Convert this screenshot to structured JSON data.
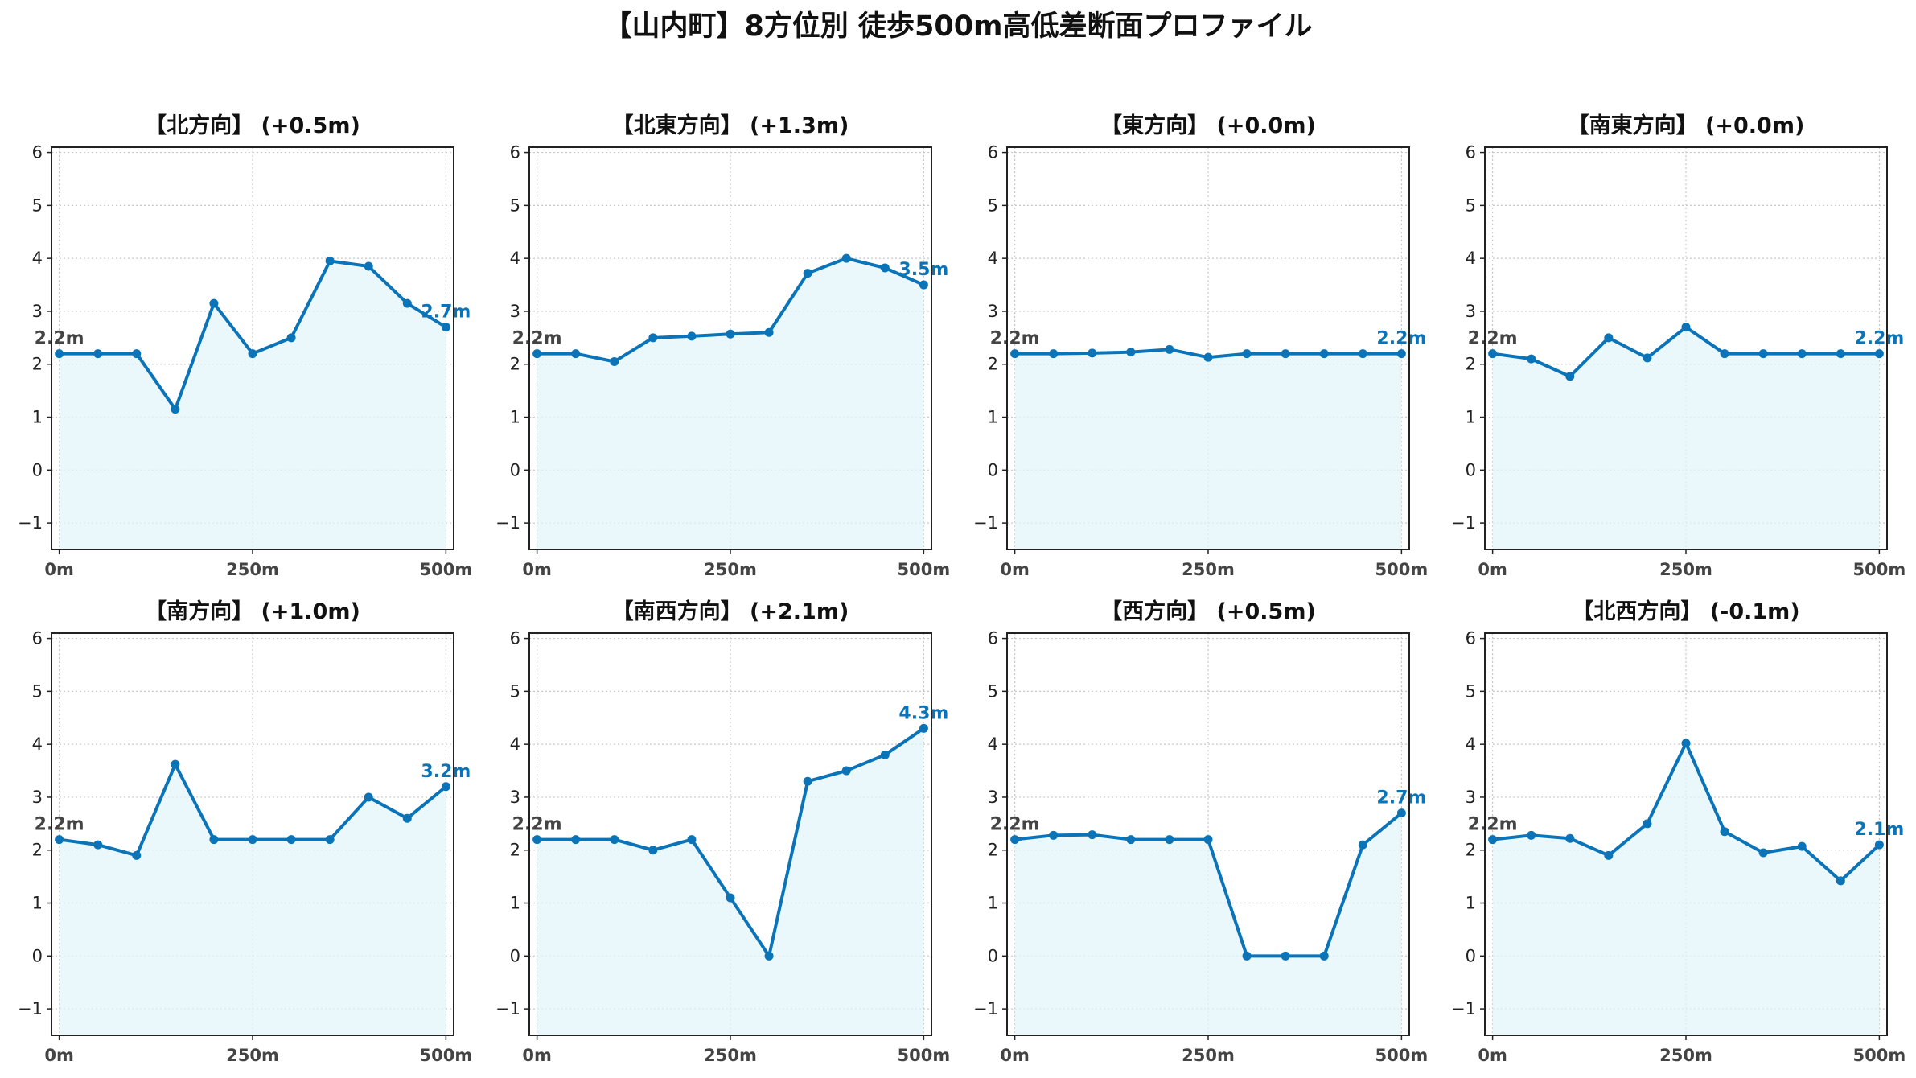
{
  "title": "【山内町】8方位別 徒歩500m高低差断面プロファイル",
  "colors": {
    "line": "#0b74b8",
    "fill": "#e3f4fa",
    "grid": "#c8c8c8",
    "start_label": "#444444",
    "end_label": "#0b74b8"
  },
  "chart_data": [
    {
      "type": "line",
      "title": "【北方向】 (+0.5m)",
      "x": [
        0,
        50,
        100,
        150,
        200,
        250,
        300,
        350,
        400,
        450,
        500
      ],
      "values": [
        2.2,
        2.2,
        2.2,
        1.15,
        3.15,
        2.2,
        2.5,
        3.95,
        3.85,
        3.15,
        2.7
      ],
      "start_label": "2.2m",
      "end_label": "2.7m",
      "xticks": [
        "0m",
        "250m",
        "500m"
      ],
      "yticks": [
        "−1",
        "0",
        "1",
        "2",
        "3",
        "4",
        "5",
        "6"
      ],
      "ylim": [
        -1.5,
        6.1
      ],
      "xlim": [
        -10,
        510
      ],
      "grid": true
    },
    {
      "type": "line",
      "title": "【北東方向】 (+1.3m)",
      "x": [
        0,
        50,
        100,
        150,
        200,
        250,
        300,
        350,
        400,
        450,
        500
      ],
      "values": [
        2.2,
        2.2,
        2.05,
        2.5,
        2.53,
        2.57,
        2.6,
        3.72,
        4.0,
        3.82,
        3.5
      ],
      "start_label": "2.2m",
      "end_label": "3.5m",
      "xticks": [
        "0m",
        "250m",
        "500m"
      ],
      "yticks": [
        "−1",
        "0",
        "1",
        "2",
        "3",
        "4",
        "5",
        "6"
      ],
      "ylim": [
        -1.5,
        6.1
      ],
      "xlim": [
        -10,
        510
      ],
      "grid": true
    },
    {
      "type": "line",
      "title": "【東方向】 (+0.0m)",
      "x": [
        0,
        50,
        100,
        150,
        200,
        250,
        300,
        350,
        400,
        450,
        500
      ],
      "values": [
        2.2,
        2.2,
        2.21,
        2.23,
        2.28,
        2.13,
        2.2,
        2.2,
        2.2,
        2.2,
        2.2
      ],
      "start_label": "2.2m",
      "end_label": "2.2m",
      "xticks": [
        "0m",
        "250m",
        "500m"
      ],
      "yticks": [
        "−1",
        "0",
        "1",
        "2",
        "3",
        "4",
        "5",
        "6"
      ],
      "ylim": [
        -1.5,
        6.1
      ],
      "xlim": [
        -10,
        510
      ],
      "grid": true
    },
    {
      "type": "line",
      "title": "【南東方向】 (+0.0m)",
      "x": [
        0,
        50,
        100,
        150,
        200,
        250,
        300,
        350,
        400,
        450,
        500
      ],
      "values": [
        2.2,
        2.1,
        1.77,
        2.5,
        2.12,
        2.7,
        2.2,
        2.2,
        2.2,
        2.2,
        2.2
      ],
      "start_label": "2.2m",
      "end_label": "2.2m",
      "xticks": [
        "0m",
        "250m",
        "500m"
      ],
      "yticks": [
        "−1",
        "0",
        "1",
        "2",
        "3",
        "4",
        "5",
        "6"
      ],
      "ylim": [
        -1.5,
        6.1
      ],
      "xlim": [
        -10,
        510
      ],
      "grid": true
    },
    {
      "type": "line",
      "title": "【南方向】 (+1.0m)",
      "x": [
        0,
        50,
        100,
        150,
        200,
        250,
        300,
        350,
        400,
        450,
        500
      ],
      "values": [
        2.2,
        2.1,
        1.9,
        3.62,
        2.2,
        2.2,
        2.2,
        2.2,
        3.0,
        2.6,
        3.2
      ],
      "start_label": "2.2m",
      "end_label": "3.2m",
      "xticks": [
        "0m",
        "250m",
        "500m"
      ],
      "yticks": [
        "−1",
        "0",
        "1",
        "2",
        "3",
        "4",
        "5",
        "6"
      ],
      "ylim": [
        -1.5,
        6.1
      ],
      "xlim": [
        -10,
        510
      ],
      "grid": true
    },
    {
      "type": "line",
      "title": "【南西方向】 (+2.1m)",
      "x": [
        0,
        50,
        100,
        150,
        200,
        250,
        300,
        350,
        400,
        450,
        500
      ],
      "values": [
        2.2,
        2.2,
        2.2,
        2.0,
        2.2,
        1.1,
        0.0,
        3.3,
        3.5,
        3.8,
        4.3
      ],
      "start_label": "2.2m",
      "end_label": "4.3m",
      "xticks": [
        "0m",
        "250m",
        "500m"
      ],
      "yticks": [
        "−1",
        "0",
        "1",
        "2",
        "3",
        "4",
        "5",
        "6"
      ],
      "ylim": [
        -1.5,
        6.1
      ],
      "xlim": [
        -10,
        510
      ],
      "grid": true
    },
    {
      "type": "line",
      "title": "【西方向】 (+0.5m)",
      "x": [
        0,
        50,
        100,
        150,
        200,
        250,
        300,
        350,
        400,
        450,
        500
      ],
      "values": [
        2.2,
        2.28,
        2.29,
        2.2,
        2.2,
        2.2,
        0.0,
        0.0,
        0.0,
        2.1,
        2.7
      ],
      "start_label": "2.2m",
      "end_label": "2.7m",
      "xticks": [
        "0m",
        "250m",
        "500m"
      ],
      "yticks": [
        "−1",
        "0",
        "1",
        "2",
        "3",
        "4",
        "5",
        "6"
      ],
      "ylim": [
        -1.5,
        6.1
      ],
      "xlim": [
        -10,
        510
      ],
      "grid": true
    },
    {
      "type": "line",
      "title": "【北西方向】 (-0.1m)",
      "x": [
        0,
        50,
        100,
        150,
        200,
        250,
        300,
        350,
        400,
        450,
        500
      ],
      "values": [
        2.2,
        2.28,
        2.22,
        1.9,
        2.5,
        4.02,
        2.35,
        1.95,
        2.07,
        1.42,
        2.1
      ],
      "start_label": "2.2m",
      "end_label": "2.1m",
      "xticks": [
        "0m",
        "250m",
        "500m"
      ],
      "yticks": [
        "−1",
        "0",
        "1",
        "2",
        "3",
        "4",
        "5",
        "6"
      ],
      "ylim": [
        -1.5,
        6.1
      ],
      "xlim": [
        -10,
        510
      ],
      "grid": true
    }
  ]
}
